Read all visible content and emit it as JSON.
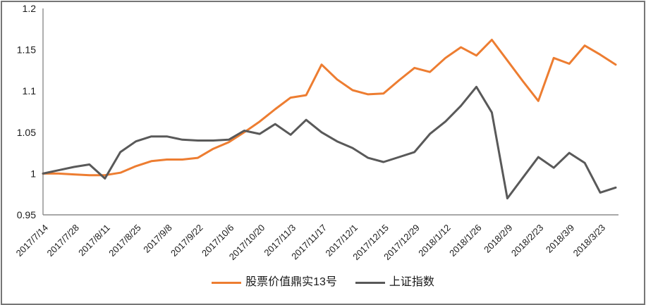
{
  "chart_data": {
    "type": "line",
    "title": "",
    "xlabel": "",
    "ylabel": "",
    "grid": false,
    "legend_position": "bottom",
    "ylim": [
      0.95,
      1.2
    ],
    "y_ticks": [
      {
        "value": 0.95,
        "label": "0.95"
      },
      {
        "value": 1.0,
        "label": "1"
      },
      {
        "value": 1.05,
        "label": "1.05"
      },
      {
        "value": 1.1,
        "label": "1.1"
      },
      {
        "value": 1.15,
        "label": "1.15"
      },
      {
        "value": 1.2,
        "label": "1.2"
      }
    ],
    "x_labels": [
      "2017/7/14",
      "2017/7/28",
      "2017/8/11",
      "2017/8/25",
      "2017/9/8",
      "2017/9/22",
      "2017/10/6",
      "2017/10/20",
      "2017/11/3",
      "2017/11/17",
      "2017/12/1",
      "2017/12/15",
      "2017/12/29",
      "2018/1/12",
      "2018/1/26",
      "2018/2/9",
      "2018/2/23",
      "2018/3/9",
      "2018/3/23"
    ],
    "points_per_label": 2,
    "series": [
      {
        "name": "股票价值鼎实13号",
        "color": "#ED7D31",
        "values": [
          1.0,
          1.0,
          0.999,
          0.998,
          0.998,
          1.001,
          1.009,
          1.015,
          1.017,
          1.017,
          1.019,
          1.03,
          1.038,
          1.05,
          1.063,
          1.078,
          1.092,
          1.095,
          1.132,
          1.114,
          1.101,
          1.096,
          1.097,
          1.113,
          1.128,
          1.123,
          1.14,
          1.153,
          1.143,
          1.162,
          1.137,
          1.112,
          1.088,
          1.14,
          1.133,
          1.155,
          1.144,
          1.132
        ]
      },
      {
        "name": "上证指数",
        "color": "#595959",
        "values": [
          1.0,
          1.004,
          1.008,
          1.011,
          0.994,
          1.026,
          1.039,
          1.045,
          1.045,
          1.041,
          1.04,
          1.04,
          1.041,
          1.052,
          1.048,
          1.06,
          1.047,
          1.065,
          1.05,
          1.039,
          1.031,
          1.019,
          1.014,
          1.02,
          1.026,
          1.048,
          1.063,
          1.082,
          1.105,
          1.074,
          0.97,
          0.995,
          1.02,
          1.007,
          1.025,
          1.013,
          0.977,
          0.983
        ]
      }
    ],
    "axis_color": "#8C8C8C",
    "tick_label_color": "#1a1a1a"
  }
}
